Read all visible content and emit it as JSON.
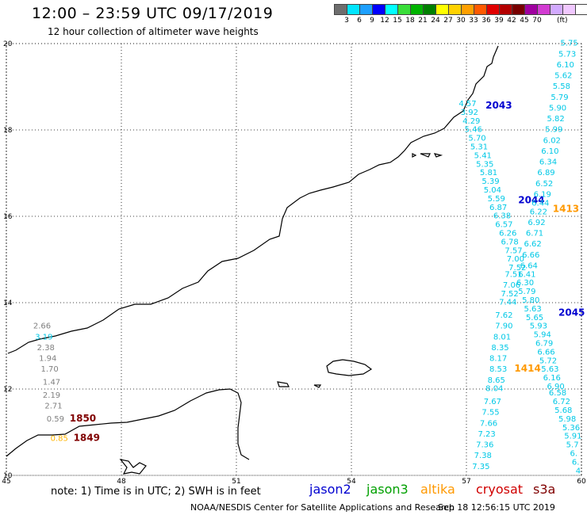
{
  "header": {
    "title": "12:00 – 23:59 UTC 09/17/2019",
    "subtitle": "12 hour collection of altimeter wave heights"
  },
  "scale": {
    "colors": [
      "#6e6e6e",
      "#00e5ff",
      "#1ea0ff",
      "#0000ff",
      "#00ffff",
      "#3ade3a",
      "#00b400",
      "#008000",
      "#ffff00",
      "#ffd200",
      "#ffa000",
      "#ff5a00",
      "#e10000",
      "#b40000",
      "#780000",
      "#a000a0",
      "#d23cd2",
      "#d2aaff",
      "#f0c8ff",
      "#ffffff"
    ],
    "labels": [
      "3",
      "6",
      "9",
      "12",
      "15",
      "18",
      "21",
      "24",
      "27",
      "30",
      "33",
      "36",
      "39",
      "42",
      "45",
      "70"
    ],
    "unit": "(ft)"
  },
  "axes": {
    "x_ticks": [
      "45",
      "48",
      "51",
      "54",
      "57",
      "60"
    ],
    "y_ticks": [
      "20",
      "18",
      "16",
      "14",
      "12",
      "10"
    ]
  },
  "map_data": {
    "lon_range": [
      45,
      60
    ],
    "lat_range": [
      10,
      20
    ],
    "satellite_colors": {
      "jason2": "#0000d0",
      "jason3": "#00a000",
      "altika": "#ff9900",
      "cryosat": "#d00000",
      "s3a": "#800000"
    },
    "track_labels": [
      {
        "text": "2043",
        "lon": 57.5,
        "lat": 18.5,
        "sat": "jason2"
      },
      {
        "text": "2044",
        "lon": 58.35,
        "lat": 16.3,
        "sat": "jason2"
      },
      {
        "text": "2045",
        "lon": 59.4,
        "lat": 13.7,
        "sat": "jason2"
      },
      {
        "text": "1413",
        "lon": 59.25,
        "lat": 16.1,
        "sat": "altika"
      },
      {
        "text": "1414",
        "lon": 58.25,
        "lat": 12.4,
        "sat": "altika"
      },
      {
        "text": "1850",
        "lon": 46.65,
        "lat": 11.25,
        "sat": "s3a"
      },
      {
        "text": "1849",
        "lon": 46.75,
        "lat": 10.8,
        "sat": "s3a"
      }
    ],
    "wave_labels": [
      {
        "v": "5.75",
        "lon": 59.45,
        "lat": 19.95,
        "c": "#00c8e6"
      },
      {
        "v": "5.73",
        "lon": 59.4,
        "lat": 19.7,
        "c": "#00c8e6"
      },
      {
        "v": "6.10",
        "lon": 59.35,
        "lat": 19.45,
        "c": "#00c8e6"
      },
      {
        "v": "5.62",
        "lon": 59.3,
        "lat": 19.2,
        "c": "#00c8e6"
      },
      {
        "v": "5.58",
        "lon": 59.25,
        "lat": 18.95,
        "c": "#00c8e6"
      },
      {
        "v": "5.79",
        "lon": 59.2,
        "lat": 18.7,
        "c": "#00c8e6"
      },
      {
        "v": "5.90",
        "lon": 59.15,
        "lat": 18.45,
        "c": "#00c8e6"
      },
      {
        "v": "5.82",
        "lon": 59.1,
        "lat": 18.2,
        "c": "#00c8e6"
      },
      {
        "v": "5.99",
        "lon": 59.05,
        "lat": 17.95,
        "c": "#00c8e6"
      },
      {
        "v": "6.02",
        "lon": 59.0,
        "lat": 17.7,
        "c": "#00c8e6"
      },
      {
        "v": "6.10",
        "lon": 58.95,
        "lat": 17.45,
        "c": "#00c8e6"
      },
      {
        "v": "6.34",
        "lon": 58.9,
        "lat": 17.2,
        "c": "#00c8e6"
      },
      {
        "v": "6.89",
        "lon": 58.85,
        "lat": 16.95,
        "c": "#00c8e6"
      },
      {
        "v": "6.52",
        "lon": 58.8,
        "lat": 16.7,
        "c": "#00c8e6"
      },
      {
        "v": "6.19",
        "lon": 58.75,
        "lat": 16.45,
        "c": "#00c8e6"
      },
      {
        "v": "6.44",
        "lon": 58.7,
        "lat": 16.25,
        "c": "#00c8e6"
      },
      {
        "v": "6.22",
        "lon": 58.65,
        "lat": 16.05,
        "c": "#00c8e6"
      },
      {
        "v": "6.92",
        "lon": 58.6,
        "lat": 15.8,
        "c": "#00c8e6"
      },
      {
        "v": "6.71",
        "lon": 58.55,
        "lat": 15.55,
        "c": "#00c8e6"
      },
      {
        "v": "6.62",
        "lon": 58.5,
        "lat": 15.3,
        "c": "#00c8e6"
      },
      {
        "v": "6.66",
        "lon": 58.45,
        "lat": 15.05,
        "c": "#00c8e6"
      },
      {
        "v": "6.64",
        "lon": 58.4,
        "lat": 14.8,
        "c": "#00c8e6"
      },
      {
        "v": "6.41",
        "lon": 58.35,
        "lat": 14.6,
        "c": "#00c8e6"
      },
      {
        "v": "6.30",
        "lon": 58.3,
        "lat": 14.4,
        "c": "#00c8e6"
      },
      {
        "v": "5.79",
        "lon": 58.35,
        "lat": 14.2,
        "c": "#00c8e6"
      },
      {
        "v": "5.80",
        "lon": 58.45,
        "lat": 14.0,
        "c": "#00c8e6"
      },
      {
        "v": "5.63",
        "lon": 58.5,
        "lat": 13.8,
        "c": "#00c8e6"
      },
      {
        "v": "5.65",
        "lon": 58.55,
        "lat": 13.6,
        "c": "#00c8e6"
      },
      {
        "v": "5.93",
        "lon": 58.65,
        "lat": 13.4,
        "c": "#00c8e6"
      },
      {
        "v": "5.94",
        "lon": 58.75,
        "lat": 13.2,
        "c": "#00c8e6"
      },
      {
        "v": "6.79",
        "lon": 58.8,
        "lat": 13.0,
        "c": "#00c8e6"
      },
      {
        "v": "6.66",
        "lon": 58.85,
        "lat": 12.8,
        "c": "#00c8e6"
      },
      {
        "v": "5.72",
        "lon": 58.9,
        "lat": 12.6,
        "c": "#00c8e6"
      },
      {
        "v": "5.63",
        "lon": 58.95,
        "lat": 12.4,
        "c": "#00c8e6"
      },
      {
        "v": "6.16",
        "lon": 59.0,
        "lat": 12.2,
        "c": "#00c8e6"
      },
      {
        "v": "6.90",
        "lon": 59.1,
        "lat": 12.0,
        "c": "#00c8e6"
      },
      {
        "v": "6.58",
        "lon": 59.15,
        "lat": 11.85,
        "c": "#00c8e6"
      },
      {
        "v": "6.72",
        "lon": 59.25,
        "lat": 11.65,
        "c": "#00c8e6"
      },
      {
        "v": "5.68",
        "lon": 59.3,
        "lat": 11.45,
        "c": "#00c8e6"
      },
      {
        "v": "5.98",
        "lon": 59.4,
        "lat": 11.25,
        "c": "#00c8e6"
      },
      {
        "v": "5.36",
        "lon": 59.5,
        "lat": 11.05,
        "c": "#00c8e6"
      },
      {
        "v": "5.91",
        "lon": 59.55,
        "lat": 10.85,
        "c": "#00c8e6"
      },
      {
        "v": "5.7",
        "lon": 59.6,
        "lat": 10.65,
        "c": "#00c8e6"
      },
      {
        "v": "6.",
        "lon": 59.7,
        "lat": 10.45,
        "c": "#00c8e6"
      },
      {
        "v": "6.",
        "lon": 59.75,
        "lat": 10.25,
        "c": "#00c8e6"
      },
      {
        "v": "4",
        "lon": 59.85,
        "lat": 10.05,
        "c": "#00c8e6"
      },
      {
        "v": "4.57",
        "lon": 56.8,
        "lat": 18.55,
        "c": "#00c8e6"
      },
      {
        "v": "3.92",
        "lon": 56.85,
        "lat": 18.35,
        "c": "#00c8e6"
      },
      {
        "v": "4.29",
        "lon": 56.9,
        "lat": 18.15,
        "c": "#00c8e6"
      },
      {
        "v": "5.46",
        "lon": 56.95,
        "lat": 17.95,
        "c": "#00c8e6"
      },
      {
        "v": "5.70",
        "lon": 57.05,
        "lat": 17.75,
        "c": "#00c8e6"
      },
      {
        "v": "5.31",
        "lon": 57.1,
        "lat": 17.55,
        "c": "#00c8e6"
      },
      {
        "v": "5.41",
        "lon": 57.2,
        "lat": 17.35,
        "c": "#00c8e6"
      },
      {
        "v": "5.35",
        "lon": 57.25,
        "lat": 17.15,
        "c": "#00c8e6"
      },
      {
        "v": "5.81",
        "lon": 57.35,
        "lat": 16.95,
        "c": "#00c8e6"
      },
      {
        "v": "5.39",
        "lon": 57.4,
        "lat": 16.75,
        "c": "#00c8e6"
      },
      {
        "v": "5.04",
        "lon": 57.45,
        "lat": 16.55,
        "c": "#00c8e6"
      },
      {
        "v": "5.59",
        "lon": 57.55,
        "lat": 16.35,
        "c": "#00c8e6"
      },
      {
        "v": "6.87",
        "lon": 57.6,
        "lat": 16.15,
        "c": "#00c8e6"
      },
      {
        "v": "6.38",
        "lon": 57.7,
        "lat": 15.95,
        "c": "#00c8e6"
      },
      {
        "v": "6.57",
        "lon": 57.75,
        "lat": 15.75,
        "c": "#00c8e6"
      },
      {
        "v": "6.26",
        "lon": 57.85,
        "lat": 15.55,
        "c": "#00c8e6"
      },
      {
        "v": "6.78",
        "lon": 57.9,
        "lat": 15.35,
        "c": "#00c8e6"
      },
      {
        "v": "7.57",
        "lon": 58.0,
        "lat": 15.15,
        "c": "#00c8e6"
      },
      {
        "v": "7.00",
        "lon": 58.05,
        "lat": 14.95,
        "c": "#00c8e6"
      },
      {
        "v": "7.52",
        "lon": 58.1,
        "lat": 14.75,
        "c": "#00c8e6"
      },
      {
        "v": "7.51",
        "lon": 58.0,
        "lat": 14.6,
        "c": "#00c8e6"
      },
      {
        "v": "7.06",
        "lon": 57.95,
        "lat": 14.35,
        "c": "#00c8e6"
      },
      {
        "v": "7.52",
        "lon": 57.9,
        "lat": 14.15,
        "c": "#00c8e6"
      },
      {
        "v": "7.44",
        "lon": 57.85,
        "lat": 13.95,
        "c": "#00c8e6"
      },
      {
        "v": "7.62",
        "lon": 57.75,
        "lat": 13.65,
        "c": "#00c8e6"
      },
      {
        "v": "7.90",
        "lon": 57.75,
        "lat": 13.4,
        "c": "#00c8e6"
      },
      {
        "v": "8.01",
        "lon": 57.7,
        "lat": 13.15,
        "c": "#00c8e6"
      },
      {
        "v": "8.35",
        "lon": 57.65,
        "lat": 12.9,
        "c": "#00c8e6"
      },
      {
        "v": "8.17",
        "lon": 57.6,
        "lat": 12.65,
        "c": "#00c8e6"
      },
      {
        "v": "8.53",
        "lon": 57.6,
        "lat": 12.4,
        "c": "#00c8e6"
      },
      {
        "v": "8.65",
        "lon": 57.55,
        "lat": 12.15,
        "c": "#00c8e6"
      },
      {
        "v": "8.04",
        "lon": 57.5,
        "lat": 11.95,
        "c": "#00c8e6"
      },
      {
        "v": "7.67",
        "lon": 57.45,
        "lat": 11.65,
        "c": "#00c8e6"
      },
      {
        "v": "7.55",
        "lon": 57.4,
        "lat": 11.4,
        "c": "#00c8e6"
      },
      {
        "v": "7.66",
        "lon": 57.35,
        "lat": 11.15,
        "c": "#00c8e6"
      },
      {
        "v": "7.23",
        "lon": 57.3,
        "lat": 10.9,
        "c": "#00c8e6"
      },
      {
        "v": "7.36",
        "lon": 57.25,
        "lat": 10.65,
        "c": "#00c8e6"
      },
      {
        "v": "7.38",
        "lon": 57.2,
        "lat": 10.4,
        "c": "#00c8e6"
      },
      {
        "v": "7.35",
        "lon": 57.15,
        "lat": 10.15,
        "c": "#00c8e6"
      },
      {
        "v": "2.66",
        "lon": 45.7,
        "lat": 13.4,
        "c": "#808080"
      },
      {
        "v": "3.19",
        "lon": 45.75,
        "lat": 13.15,
        "c": "#00c8e6"
      },
      {
        "v": "2.38",
        "lon": 45.8,
        "lat": 12.9,
        "c": "#808080"
      },
      {
        "v": "1.94",
        "lon": 45.85,
        "lat": 12.65,
        "c": "#808080"
      },
      {
        "v": "1.70",
        "lon": 45.9,
        "lat": 12.4,
        "c": "#808080"
      },
      {
        "v": "1.47",
        "lon": 45.95,
        "lat": 12.1,
        "c": "#808080"
      },
      {
        "v": "2.19",
        "lon": 45.95,
        "lat": 11.8,
        "c": "#808080"
      },
      {
        "v": "2.71",
        "lon": 46.0,
        "lat": 11.55,
        "c": "#808080"
      },
      {
        "v": "0.59",
        "lon": 46.05,
        "lat": 11.25,
        "c": "#808080"
      },
      {
        "v": "0.85",
        "lon": 46.15,
        "lat": 10.8,
        "c": "#ffb400"
      }
    ]
  },
  "legend": {
    "note": "note:  1) Time is in UTC;  2) SWH is in feet",
    "items": [
      {
        "label": "jason2",
        "color": "#0000d0"
      },
      {
        "label": "jason3",
        "color": "#00a000"
      },
      {
        "label": "altika",
        "color": "#ff9900"
      },
      {
        "label": "cryosat",
        "color": "#d00000"
      },
      {
        "label": "s3a",
        "color": "#800000"
      }
    ]
  },
  "footer": {
    "credit": "NOAA/NESDIS Center for Satellite Applications and Research",
    "timestamp": "Sep 18 12:56:15 UTC 2019"
  }
}
